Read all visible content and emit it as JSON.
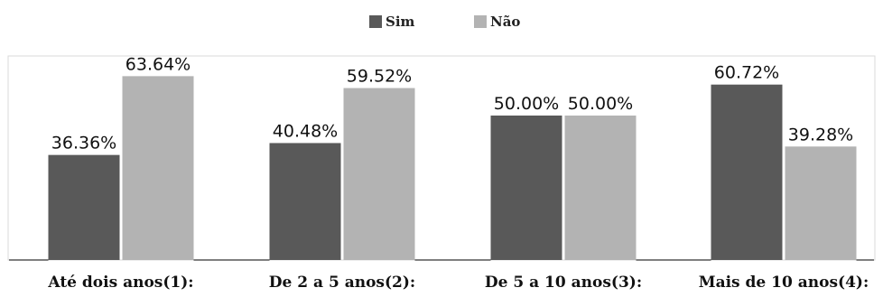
{
  "chart_data": {
    "type": "bar",
    "categories": [
      "Até dois anos(1):",
      "De 2 a 5 anos(2):",
      "De 5 a 10 anos(3):",
      "Mais de 10 anos(4):"
    ],
    "series": [
      {
        "name": "Sim",
        "color": "#595959",
        "values": [
          36.36,
          40.48,
          50.0,
          60.72
        ],
        "labels": [
          "36.36%",
          "40.48%",
          "50.00%",
          "60.72%"
        ]
      },
      {
        "name": "Não",
        "color": "#b3b3b3",
        "values": [
          63.64,
          59.52,
          50.0,
          39.28
        ],
        "labels": [
          "63.64%",
          "59.52%",
          "50.00%",
          "39.28%"
        ]
      }
    ],
    "title": "",
    "xlabel": "",
    "ylabel": "",
    "ylim": [
      0,
      70
    ],
    "grid": false,
    "legend_position": "top-center"
  }
}
